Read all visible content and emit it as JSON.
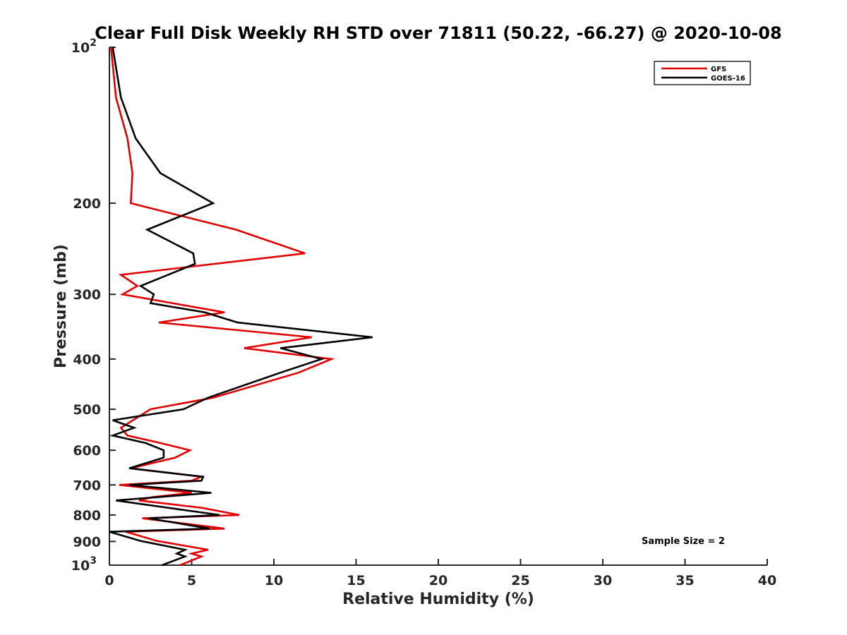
{
  "chart_data": {
    "type": "line",
    "title": "Clear Full Disk Weekly RH STD over 71811 (50.22, -66.27) @ 2020-10-08",
    "xlabel": "Relative Humidity (%)",
    "ylabel": "Pressure (mb)",
    "xlim": [
      0,
      40
    ],
    "ylim": [
      100,
      1000
    ],
    "y_scale": "log",
    "y_reversed": true,
    "grid": false,
    "legend_position": "top-right",
    "x_ticks": [
      "0",
      "5",
      "10",
      "15",
      "20",
      "25",
      "30",
      "35",
      "40"
    ],
    "y_ticks": [
      {
        "value": 100,
        "label": "10",
        "sup": "2"
      },
      {
        "value": 200,
        "label": "200"
      },
      {
        "value": 300,
        "label": "300"
      },
      {
        "value": 400,
        "label": "400"
      },
      {
        "value": 500,
        "label": "500"
      },
      {
        "value": 600,
        "label": "600"
      },
      {
        "value": 700,
        "label": "700"
      },
      {
        "value": 800,
        "label": "800"
      },
      {
        "value": 900,
        "label": "900"
      },
      {
        "value": 1000,
        "label": "10",
        "sup": "3"
      }
    ],
    "annotation": "Sample Size = 2",
    "series": [
      {
        "name": "GFS",
        "color": "#e00000",
        "points": [
          [
            0.1,
            100
          ],
          [
            0.4,
            125
          ],
          [
            1.1,
            150
          ],
          [
            1.4,
            175
          ],
          [
            1.3,
            200
          ],
          [
            7.7,
            225
          ],
          [
            11.9,
            250
          ],
          [
            0.7,
            275
          ],
          [
            1.7,
            289
          ],
          [
            0.8,
            300
          ],
          [
            7.0,
            325
          ],
          [
            3.0,
            340
          ],
          [
            12.3,
            363
          ],
          [
            8.2,
            381
          ],
          [
            13.5,
            400
          ],
          [
            11.5,
            425
          ],
          [
            6.3,
            475
          ],
          [
            2.5,
            500
          ],
          [
            0.7,
            543
          ],
          [
            1.1,
            562
          ],
          [
            3.1,
            581
          ],
          [
            4.9,
            600
          ],
          [
            4.0,
            620
          ],
          [
            1.3,
            650
          ],
          [
            5.6,
            675
          ],
          [
            5.0,
            687
          ],
          [
            0.6,
            700
          ],
          [
            5.0,
            725
          ],
          [
            2.6,
            739
          ],
          [
            1.8,
            750
          ],
          [
            5.6,
            775
          ],
          [
            7.9,
            800
          ],
          [
            2.0,
            812
          ],
          [
            7.0,
            850
          ],
          [
            1.0,
            862
          ],
          [
            2.9,
            898
          ],
          [
            6.0,
            934
          ],
          [
            5.0,
            950
          ],
          [
            5.6,
            962
          ],
          [
            4.3,
            1000
          ]
        ]
      },
      {
        "name": "GOES-16",
        "color": "#000000",
        "points": [
          [
            0.2,
            100
          ],
          [
            0.7,
            125
          ],
          [
            1.6,
            150
          ],
          [
            3.1,
            175
          ],
          [
            6.3,
            200
          ],
          [
            2.3,
            225
          ],
          [
            5.1,
            250
          ],
          [
            5.2,
            262
          ],
          [
            1.9,
            289
          ],
          [
            2.7,
            300
          ],
          [
            2.5,
            312
          ],
          [
            5.8,
            325
          ],
          [
            7.8,
            340
          ],
          [
            16.0,
            363
          ],
          [
            10.4,
            381
          ],
          [
            12.9,
            400
          ],
          [
            10.4,
            425
          ],
          [
            6.0,
            475
          ],
          [
            4.5,
            500
          ],
          [
            0.2,
            525
          ],
          [
            1.5,
            543
          ],
          [
            0.2,
            562
          ],
          [
            2.2,
            581
          ],
          [
            3.3,
            600
          ],
          [
            3.3,
            620
          ],
          [
            1.2,
            650
          ],
          [
            5.7,
            675
          ],
          [
            5.6,
            687
          ],
          [
            1.2,
            700
          ],
          [
            6.2,
            725
          ],
          [
            0.4,
            750
          ],
          [
            6.7,
            800
          ],
          [
            2.4,
            812
          ],
          [
            6.1,
            850
          ],
          [
            0.0,
            862
          ],
          [
            1.9,
            898
          ],
          [
            4.6,
            934
          ],
          [
            4.1,
            950
          ],
          [
            4.6,
            962
          ],
          [
            3.2,
            1000
          ]
        ]
      }
    ]
  }
}
